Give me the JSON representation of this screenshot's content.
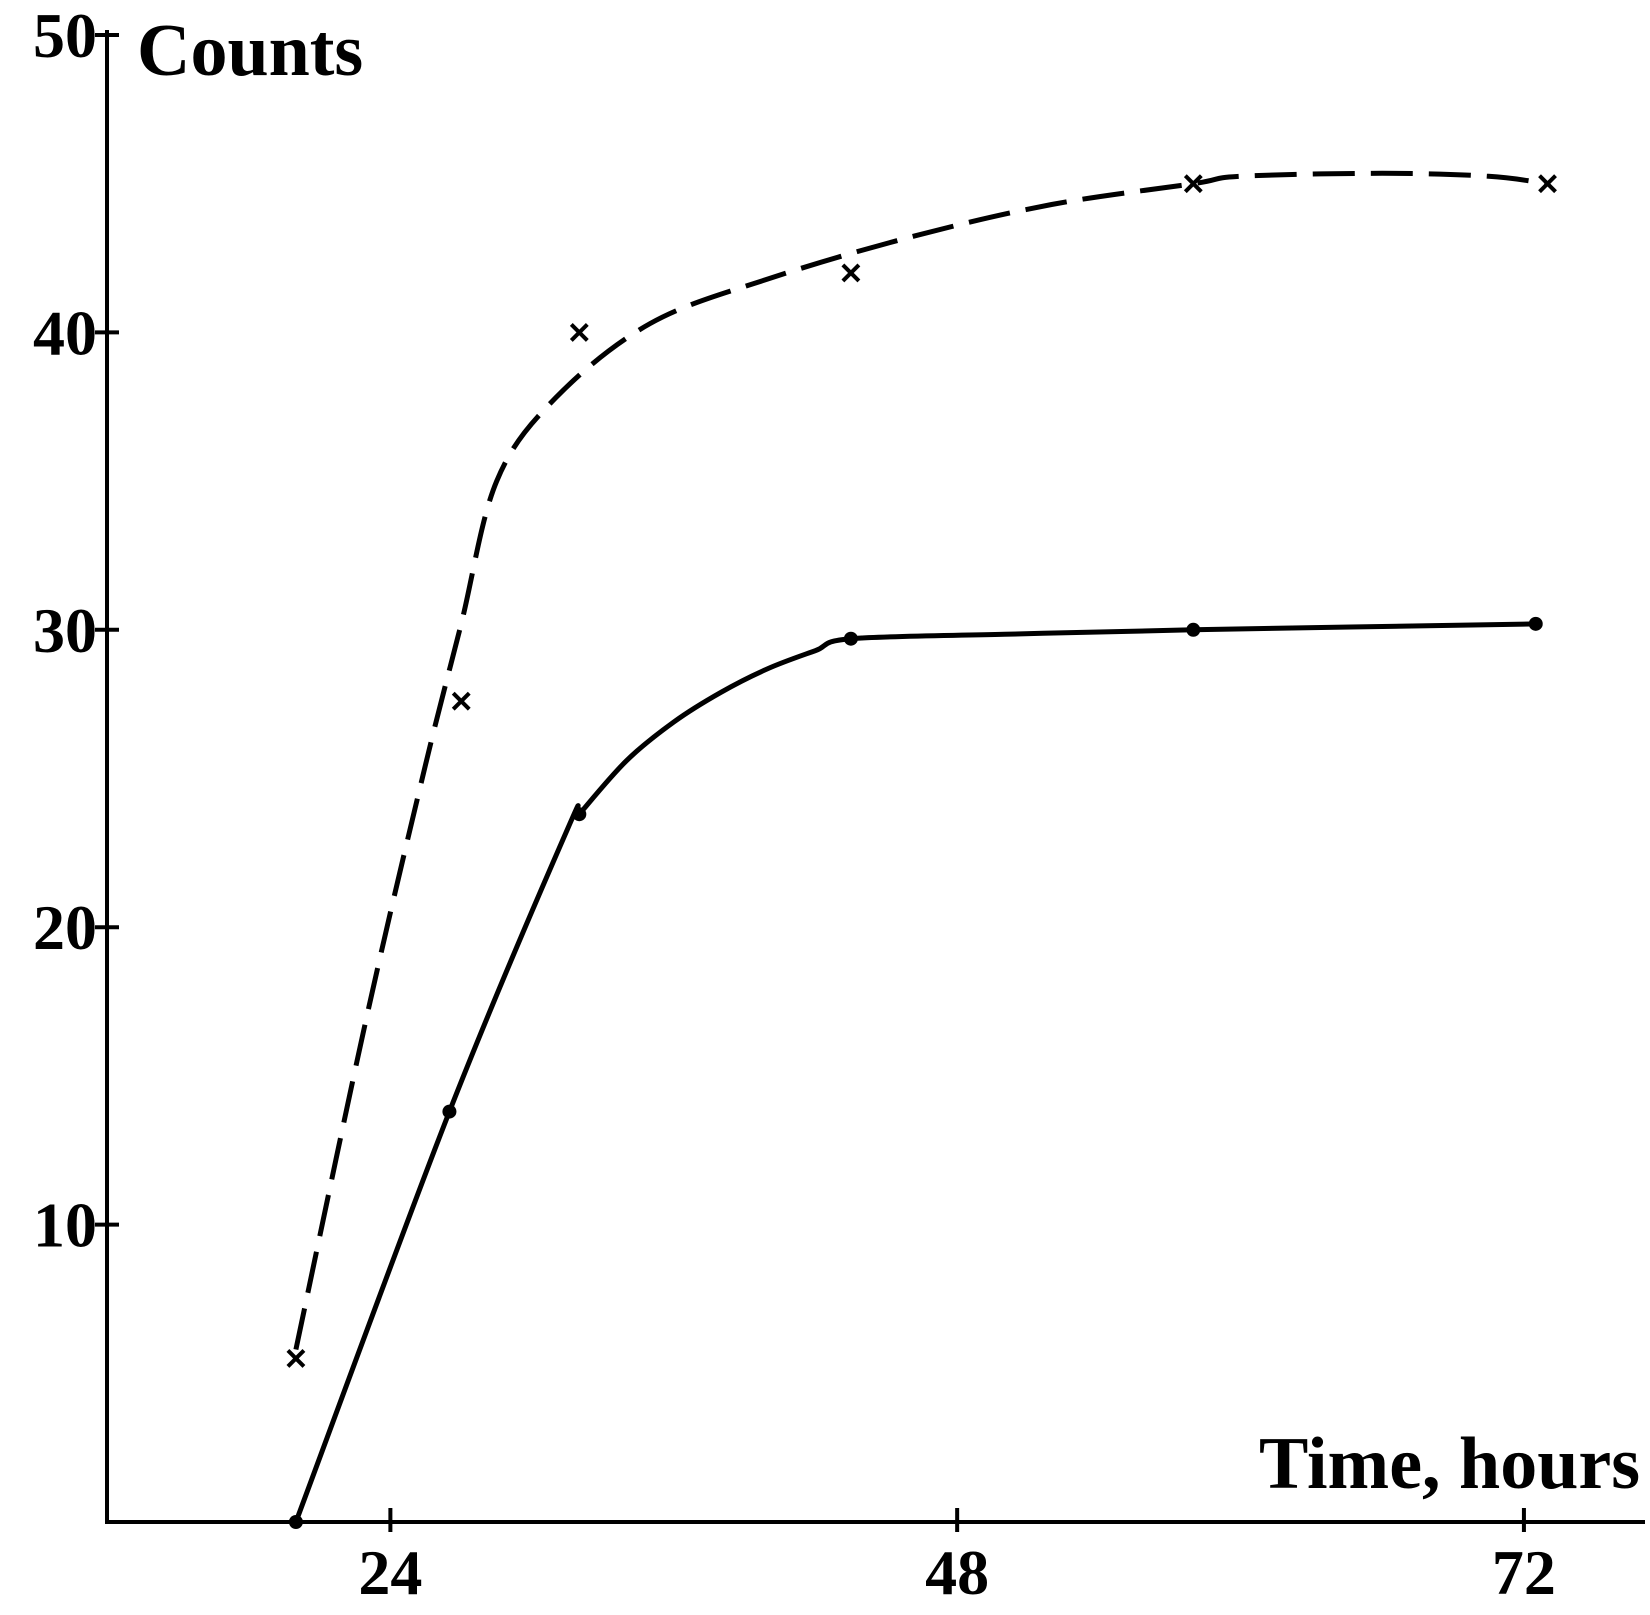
{
  "chart_data": {
    "type": "line",
    "xlabel": "Time, hours",
    "ylabel": "Counts",
    "xlim": [
      12,
      77
    ],
    "ylim": [
      0,
      50
    ],
    "xticks": [
      24,
      48,
      72
    ],
    "yticks": [
      10,
      20,
      30,
      40,
      50
    ],
    "grid": false,
    "legend": "none",
    "series": [
      {
        "style": "dashed",
        "marker": "x",
        "color": "#000000",
        "points": [
          [
            20,
            5.5
          ],
          [
            27,
            27.6
          ],
          [
            32,
            40.0
          ],
          [
            43.5,
            42.0
          ],
          [
            58,
            45.0
          ],
          [
            73,
            45.0
          ]
        ]
      },
      {
        "style": "solid",
        "marker": "dot",
        "color": "#000000",
        "points": [
          [
            20,
            0
          ],
          [
            26.5,
            13.8
          ],
          [
            32,
            23.8
          ],
          [
            43.5,
            29.7
          ],
          [
            58,
            30.0
          ],
          [
            72.5,
            30.2
          ]
        ]
      }
    ],
    "curves": [
      {
        "series": 0,
        "path": [
          [
            20,
            5.8
          ],
          [
            23,
            17
          ],
          [
            25.5,
            25.5
          ],
          [
            27,
            30.2
          ],
          [
            28.5,
            35
          ],
          [
            31,
            37.8
          ],
          [
            35,
            40.3
          ],
          [
            40,
            41.8
          ],
          [
            46,
            43.2
          ],
          [
            52,
            44.3
          ],
          [
            58,
            45.0
          ],
          [
            60,
            45.25
          ],
          [
            66,
            45.35
          ],
          [
            70.5,
            45.25
          ],
          [
            73,
            45.0
          ]
        ]
      },
      {
        "series": 1,
        "path": [
          [
            20,
            0
          ],
          [
            26.5,
            13.8
          ],
          [
            31.5,
            23.3
          ],
          [
            32,
            23.8
          ],
          [
            34,
            25.6
          ],
          [
            36,
            26.9
          ],
          [
            38,
            27.9
          ],
          [
            40,
            28.7
          ],
          [
            42,
            29.3
          ],
          [
            43.5,
            29.7
          ],
          [
            50,
            29.85
          ],
          [
            58,
            30.0
          ],
          [
            72.5,
            30.2
          ]
        ]
      }
    ]
  }
}
